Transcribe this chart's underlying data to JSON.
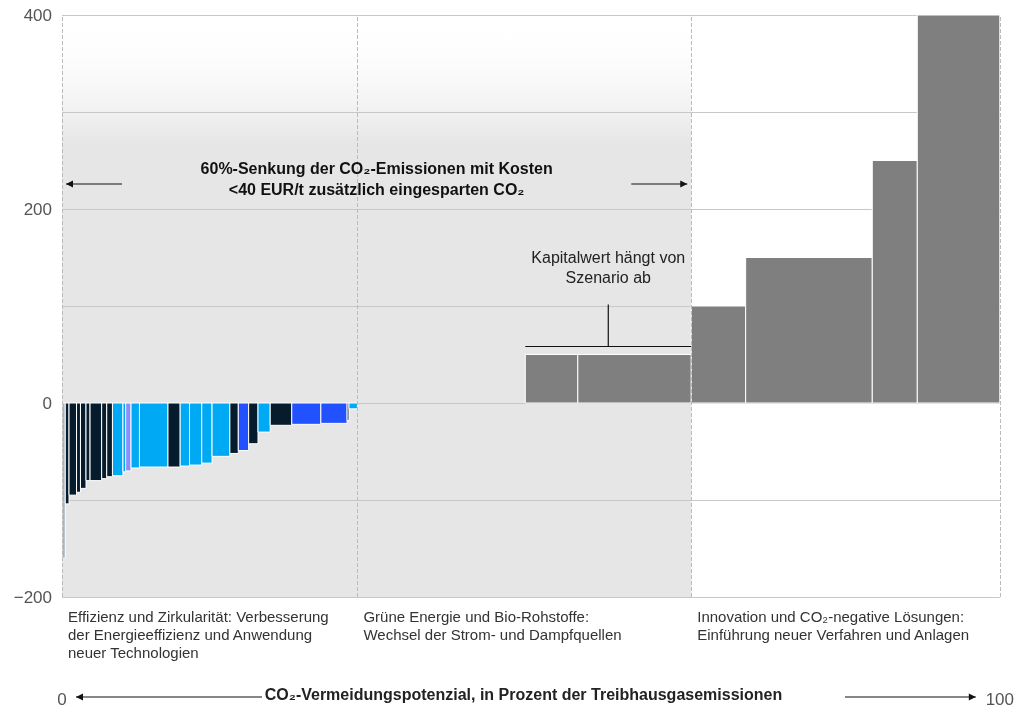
{
  "chart_data": {
    "type": "histogram",
    "bins": [
      0,
      0.35,
      0.75,
      1.55,
      1.97,
      2.56,
      2.99,
      4.23,
      4.77,
      5.38,
      6.5,
      6.79,
      7.36,
      8.26,
      11.3,
      12.6,
      13.6,
      14.9,
      16.0,
      17.9,
      18.8,
      19.9,
      20.9,
      22.2,
      24.5,
      27.6,
      30.4,
      30.6,
      31.5,
      49.4,
      55.0,
      67.1,
      72.9,
      86.4,
      91.2,
      100
    ],
    "values": [
      -160,
      -104,
      -95,
      -92,
      -88,
      -80,
      -80,
      -78,
      -76,
      -75,
      -71,
      -70,
      -67,
      -66,
      -66,
      -65,
      -64,
      -62,
      -55,
      -52,
      -49,
      -42,
      -30,
      -23,
      -22,
      -21,
      -18,
      -6,
      null,
      50,
      50,
      100,
      150,
      250,
      400
    ],
    "colors": [
      "#aab4bd",
      "#061c2c",
      "#061c2c",
      "#061c2c",
      "#061c2c",
      "#061c2c",
      "#061c2c",
      "#061c2c",
      "#061c2c",
      "#00a9f4",
      "#00a9f4",
      "#8a8cff",
      "#00a9f4",
      "#00a9f4",
      "#061c2c",
      "#00a9f4",
      "#00a9f4",
      "#00a9f4",
      "#00a9f4",
      "#061c2c",
      "#2251ff",
      "#061c2c",
      "#00a9f4",
      "#061c2c",
      "#2251ff",
      "#2251ff",
      "#061c2c",
      "#00a9f4",
      null,
      "#7f7f7f",
      "#7f7f7f",
      "#7f7f7f",
      "#7f7f7f",
      "#7f7f7f",
      "#7f7f7f"
    ],
    "xlabel": "CO₂-Vermeidungspotenzial, in Prozent der Treibhausgasemissionen",
    "xlim": [
      0,
      100
    ],
    "xticks": [
      0,
      100
    ],
    "ylim": [
      -200,
      400
    ],
    "yticks": [
      {
        "value": -200,
        "label": "−200"
      },
      {
        "value": -100,
        "label": null
      },
      0,
      {
        "value": 100,
        "label": null
      },
      200,
      {
        "value": 300,
        "label": null
      },
      400
    ],
    "grid": "y",
    "bands": [
      {
        "axis": "x",
        "from": 0,
        "to": 67.1,
        "label": "60%-Senkung der CO₂-Emissionen mit Kosten <40 EUR/t zusätzlich eingesparten CO₂",
        "color": "#e6e6e6"
      }
    ],
    "ref_lines": [
      {
        "axis": "x",
        "value": 0,
        "line_style": "dashed",
        "color": "#bbbbbb"
      },
      {
        "axis": "x",
        "value": 31.5,
        "line_style": "dashed",
        "color": "#bbbbbb"
      },
      {
        "axis": "x",
        "value": 67.1,
        "line_style": "dashed",
        "color": "#bbbbbb"
      },
      {
        "axis": "x",
        "value": 100,
        "line_style": "dashed",
        "color": "#bbbbbb"
      }
    ],
    "annotations": [
      "Kapitalwert hängt von Szenario ab",
      "Effizienz und Zirkularität: Verbesserung der Energieeffizienz und Anwendung neuer Technologien",
      "Grüne Energie und Bio-Rohstoffe: Wechsel der Strom- und Dampfquellen",
      "Innovation und CO₂-negative Lösungen: Einführung neuer Verfahren und Anlagen"
    ]
  }
}
